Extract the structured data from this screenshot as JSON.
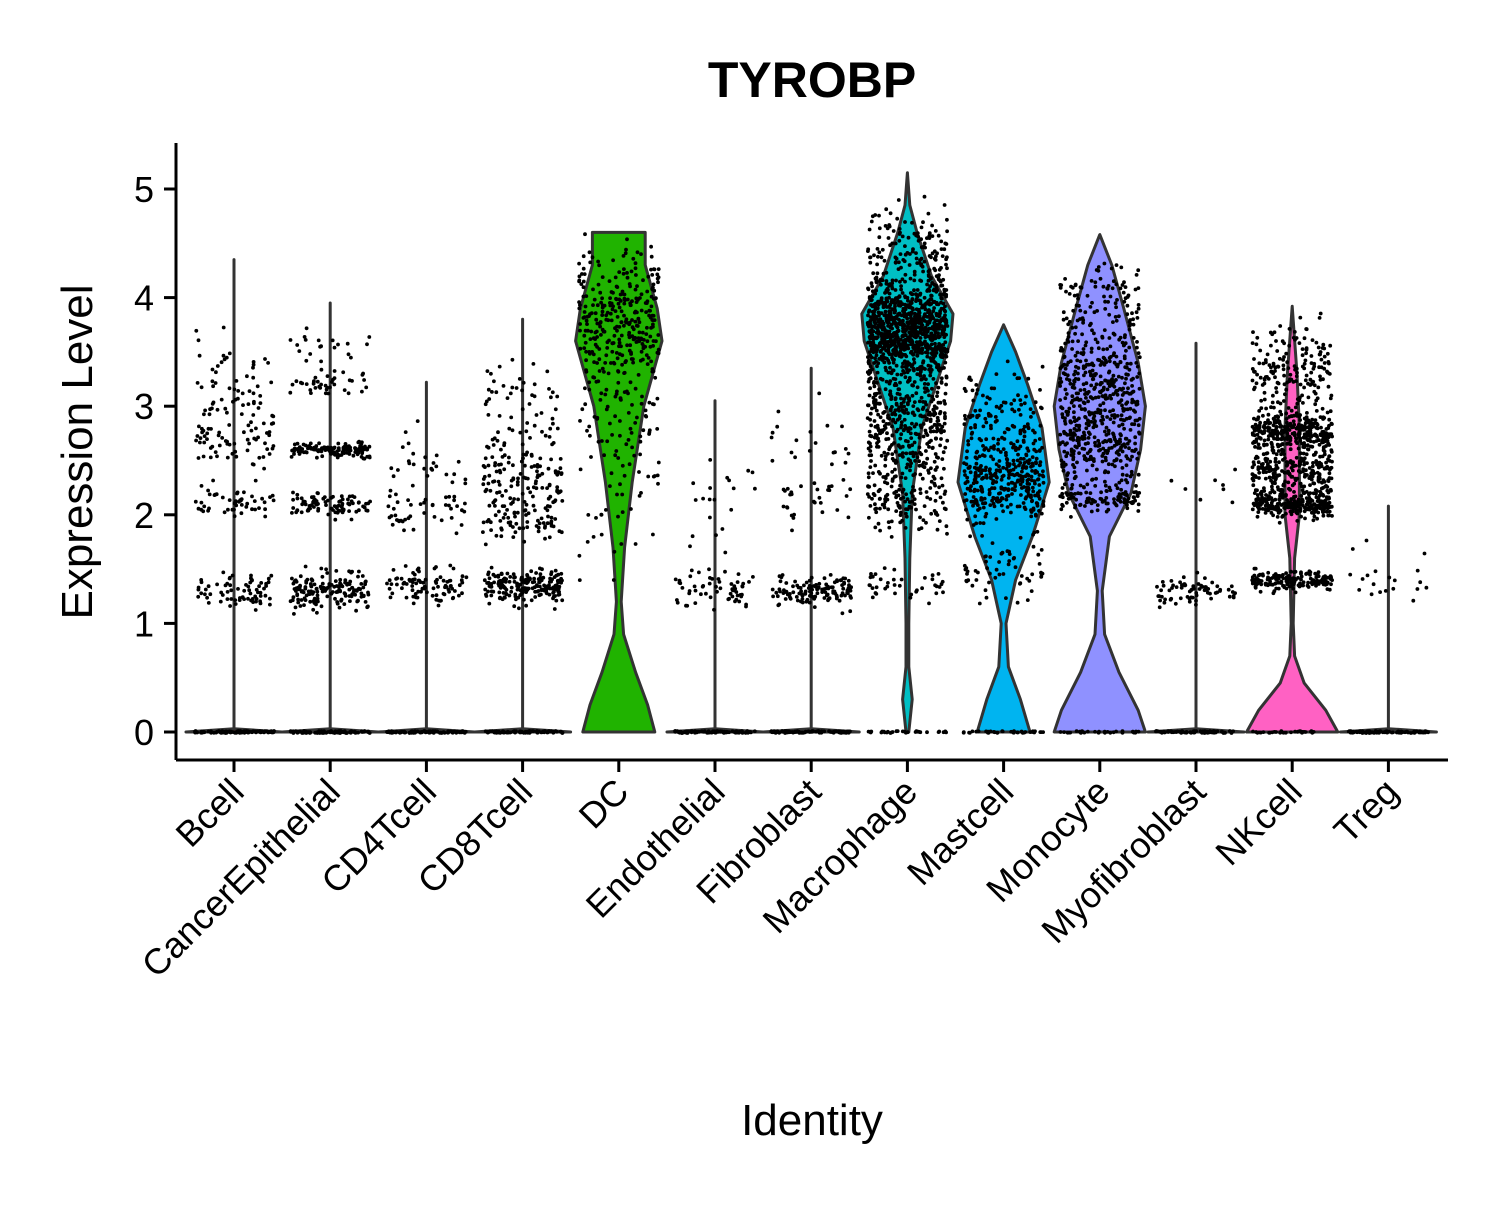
{
  "chart_data": {
    "type": "violin",
    "title": "TYROBP",
    "xlabel": "Identity",
    "ylabel": "Expression Level",
    "ylim": [
      -0.25,
      5.4
    ],
    "yticks": [
      0,
      1,
      2,
      3,
      4,
      5
    ],
    "ytick_labels": [
      "0",
      "1",
      "2",
      "3",
      "4",
      "5"
    ],
    "grid": false,
    "legend": "none",
    "categories": [
      "Bcell",
      "CancerEpithelial",
      "CD4Tcell",
      "CD8Tcell",
      "DC",
      "Endothelial",
      "Fibroblast",
      "Macrophage",
      "Mastcell",
      "Monocyte",
      "Myofibroblast",
      "NKcell",
      "Treg"
    ],
    "series": [
      {
        "category": "Bcell",
        "color": "#f8766d",
        "max": 4.35,
        "shape": [
          [
            0,
            1.0
          ],
          [
            0.03,
            0.0
          ],
          [
            4.35,
            0.0
          ]
        ],
        "points": {
          "zero": 90,
          "bands": [
            [
              1.3,
              0.15,
              70
            ],
            [
              2.1,
              0.15,
              50
            ],
            [
              2.7,
              0.2,
              60
            ],
            [
              3.2,
              0.45,
              60
            ]
          ]
        }
      },
      {
        "category": "CancerEpithelial",
        "color": "#de8c00",
        "max": 3.95,
        "shape": [
          [
            0,
            1.0
          ],
          [
            0.03,
            0.0
          ],
          [
            3.95,
            0.0
          ]
        ],
        "points": {
          "zero": 90,
          "bands": [
            [
              1.3,
              0.15,
              160
            ],
            [
              2.1,
              0.08,
              90
            ],
            [
              2.6,
              0.06,
              130
            ],
            [
              3.2,
              0.1,
              40
            ],
            [
              3.55,
              0.12,
              20
            ]
          ]
        }
      },
      {
        "category": "CD4Tcell",
        "color": "#b79f00",
        "max": 3.22,
        "shape": [
          [
            0,
            1.0
          ],
          [
            0.03,
            0.0
          ],
          [
            3.22,
            0.0
          ]
        ],
        "points": {
          "zero": 90,
          "bands": [
            [
              1.35,
              0.12,
              90
            ],
            [
              2.0,
              0.15,
              40
            ],
            [
              2.4,
              0.35,
              30
            ]
          ]
        }
      },
      {
        "category": "CD8Tcell",
        "color": "#7cae00",
        "max": 3.8,
        "shape": [
          [
            0,
            1.0
          ],
          [
            0.03,
            0.0
          ],
          [
            3.8,
            0.0
          ]
        ],
        "points": {
          "zero": 90,
          "bands": [
            [
              1.35,
              0.12,
              200
            ],
            [
              2.0,
              0.2,
              90
            ],
            [
              2.4,
              0.2,
              80
            ],
            [
              2.9,
              0.5,
              70
            ]
          ]
        }
      },
      {
        "category": "DC",
        "color": "#20b300",
        "max": 4.6,
        "shape": [
          [
            0,
            0.75
          ],
          [
            0.25,
            0.6
          ],
          [
            0.55,
            0.35
          ],
          [
            0.9,
            0.1
          ],
          [
            1.2,
            0.05
          ],
          [
            1.7,
            0.12
          ],
          [
            2.3,
            0.28
          ],
          [
            3.0,
            0.52
          ],
          [
            3.6,
            0.9
          ],
          [
            3.9,
            0.8
          ],
          [
            4.3,
            0.55
          ],
          [
            4.6,
            0.55
          ]
        ],
        "points": {
          "zero": 0,
          "bands": [
            [
              3.8,
              0.5,
              300
            ],
            [
              2.9,
              0.6,
              90
            ],
            [
              2.0,
              0.5,
              25
            ]
          ]
        }
      },
      {
        "category": "Endothelial",
        "color": "#00be67",
        "max": 3.05,
        "shape": [
          [
            0,
            1.0
          ],
          [
            0.03,
            0.0
          ],
          [
            3.05,
            0.0
          ]
        ],
        "points": {
          "zero": 90,
          "bands": [
            [
              1.3,
              0.15,
              60
            ],
            [
              2.2,
              0.4,
              20
            ]
          ]
        }
      },
      {
        "category": "Fibroblast",
        "color": "#00c19a",
        "max": 3.35,
        "shape": [
          [
            0,
            1.0
          ],
          [
            0.03,
            0.0
          ],
          [
            3.35,
            0.0
          ]
        ],
        "points": {
          "zero": 90,
          "bands": [
            [
              1.3,
              0.12,
              120
            ],
            [
              2.1,
              0.15,
              30
            ],
            [
              2.7,
              0.3,
              20
            ]
          ]
        }
      },
      {
        "category": "Macrophage",
        "color": "#00bfc4",
        "max": 5.15,
        "shape": [
          [
            0,
            0.03
          ],
          [
            0.3,
            0.1
          ],
          [
            0.6,
            0.03
          ],
          [
            1.0,
            0.03
          ],
          [
            1.6,
            0.05
          ],
          [
            2.2,
            0.1
          ],
          [
            2.8,
            0.3
          ],
          [
            3.2,
            0.6
          ],
          [
            3.6,
            0.9
          ],
          [
            3.85,
            0.95
          ],
          [
            4.2,
            0.5
          ],
          [
            4.6,
            0.2
          ],
          [
            4.85,
            0.05
          ],
          [
            5.15,
            0.0
          ]
        ],
        "points": {
          "zero": 30,
          "bands": [
            [
              3.7,
              0.35,
              900
            ],
            [
              2.9,
              0.4,
              350
            ],
            [
              2.2,
              0.3,
              160
            ],
            [
              1.35,
              0.12,
              40
            ],
            [
              4.4,
              0.35,
              160
            ]
          ]
        }
      },
      {
        "category": "Mastcell",
        "color": "#00b4f0",
        "max": 3.75,
        "shape": [
          [
            0,
            0.55
          ],
          [
            0.3,
            0.35
          ],
          [
            0.6,
            0.1
          ],
          [
            1.0,
            0.05
          ],
          [
            1.4,
            0.25
          ],
          [
            1.8,
            0.6
          ],
          [
            2.3,
            0.95
          ],
          [
            2.8,
            0.8
          ],
          [
            3.2,
            0.5
          ],
          [
            3.5,
            0.25
          ],
          [
            3.75,
            0.0
          ]
        ],
        "points": {
          "zero": 40,
          "bands": [
            [
              2.35,
              0.35,
              350
            ],
            [
              1.5,
              0.25,
              60
            ],
            [
              3.0,
              0.3,
              80
            ]
          ]
        }
      },
      {
        "category": "Monocyte",
        "color": "#8f91ff",
        "max": 4.58,
        "shape": [
          [
            0,
            0.95
          ],
          [
            0.2,
            0.8
          ],
          [
            0.55,
            0.4
          ],
          [
            0.9,
            0.1
          ],
          [
            1.3,
            0.05
          ],
          [
            1.8,
            0.2
          ],
          [
            2.2,
            0.65
          ],
          [
            2.6,
            0.85
          ],
          [
            3.0,
            0.95
          ],
          [
            3.4,
            0.8
          ],
          [
            3.9,
            0.5
          ],
          [
            4.3,
            0.25
          ],
          [
            4.58,
            0.0
          ]
        ],
        "points": {
          "zero": 30,
          "bands": [
            [
              2.7,
              0.4,
              300
            ],
            [
              3.3,
              0.4,
              250
            ],
            [
              2.15,
              0.1,
              100
            ],
            [
              4.0,
              0.3,
              90
            ]
          ]
        }
      },
      {
        "category": "Myofibroblast",
        "color": "#db72fb",
        "max": 3.58,
        "shape": [
          [
            0,
            1.0
          ],
          [
            0.03,
            0.0
          ],
          [
            3.58,
            0.0
          ]
        ],
        "points": {
          "zero": 90,
          "bands": [
            [
              1.3,
              0.12,
              70
            ],
            [
              2.2,
              0.3,
              8
            ]
          ]
        }
      },
      {
        "category": "NKcell",
        "color": "#ff61c3",
        "max": 3.92,
        "shape": [
          [
            0,
            0.95
          ],
          [
            0.2,
            0.7
          ],
          [
            0.45,
            0.25
          ],
          [
            0.7,
            0.05
          ],
          [
            1.0,
            0.02
          ],
          [
            1.6,
            0.05
          ],
          [
            2.0,
            0.15
          ],
          [
            2.8,
            0.15
          ],
          [
            3.3,
            0.1
          ],
          [
            3.92,
            0.0
          ]
        ],
        "points": {
          "zero": 30,
          "bands": [
            [
              1.4,
              0.08,
              170
            ],
            [
              2.1,
              0.1,
              250
            ],
            [
              2.4,
              0.2,
              250
            ],
            [
              2.75,
              0.15,
              300
            ],
            [
              3.3,
              0.4,
              180
            ]
          ]
        }
      },
      {
        "category": "Treg",
        "color": "#ff67a4",
        "max": 2.08,
        "shape": [
          [
            0,
            1.0
          ],
          [
            0.03,
            0.0
          ],
          [
            2.08,
            0.0
          ]
        ],
        "points": {
          "zero": 90,
          "bands": [
            [
              1.35,
              0.15,
              15
            ],
            [
              1.8,
              0.3,
              5
            ]
          ]
        }
      }
    ]
  }
}
